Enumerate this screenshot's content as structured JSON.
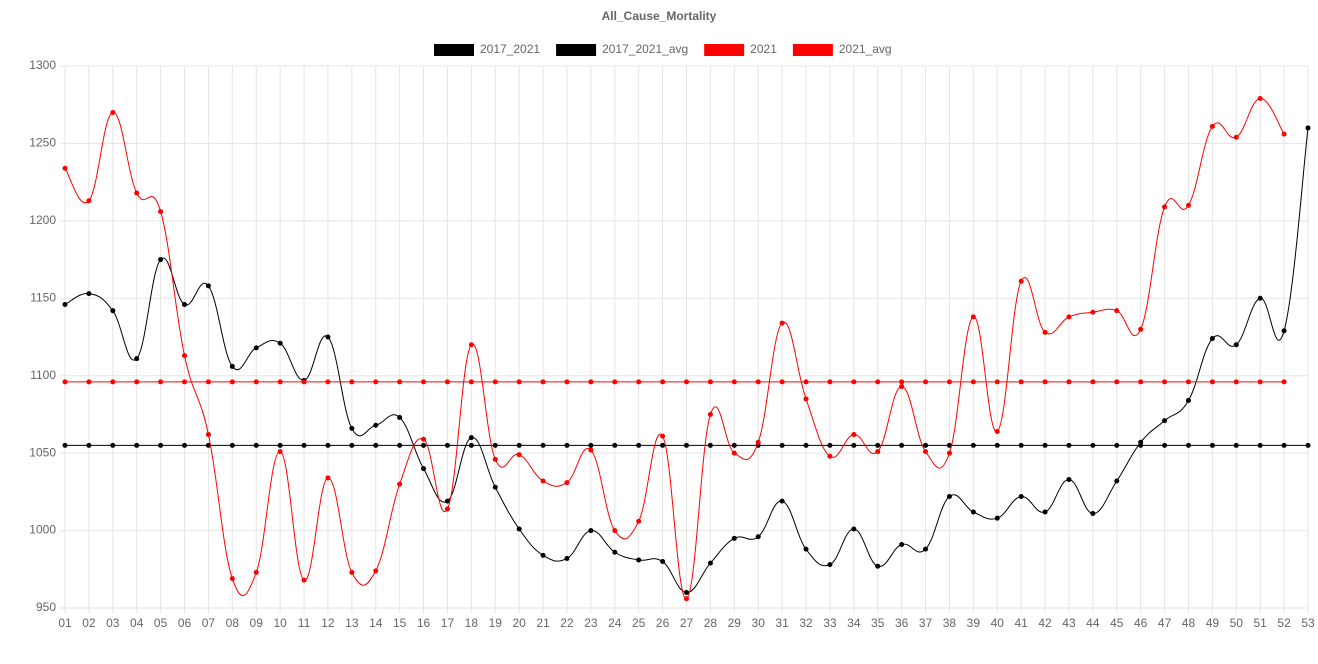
{
  "chart_data": {
    "type": "line",
    "title": "All_Cause_Mortality",
    "categories": [
      "01",
      "02",
      "03",
      "04",
      "05",
      "06",
      "07",
      "08",
      "09",
      "10",
      "11",
      "12",
      "13",
      "14",
      "15",
      "16",
      "17",
      "18",
      "19",
      "20",
      "21",
      "22",
      "23",
      "24",
      "25",
      "26",
      "27",
      "28",
      "29",
      "30",
      "31",
      "32",
      "33",
      "34",
      "35",
      "36",
      "37",
      "38",
      "39",
      "40",
      "41",
      "42",
      "43",
      "44",
      "45",
      "46",
      "47",
      "48",
      "49",
      "50",
      "51",
      "52",
      "53"
    ],
    "series": [
      {
        "name": "2017_2021",
        "color": "#000000",
        "values": [
          1146,
          1153,
          1142,
          1111,
          1175,
          1146,
          1158,
          1106,
          1118,
          1121,
          1097,
          1125,
          1066,
          1068,
          1073,
          1040,
          1019,
          1060,
          1028,
          1001,
          984,
          982,
          1000,
          986,
          981,
          980,
          960,
          979,
          995,
          996,
          1019,
          988,
          978,
          1001,
          977,
          991,
          988,
          1022,
          1012,
          1008,
          1022,
          1012,
          1033,
          1011,
          1032,
          1057,
          1071,
          1084,
          1124,
          1120,
          1150,
          1129,
          1260
        ]
      },
      {
        "name": "2017_2021_avg",
        "color": "#000000",
        "values": [
          1055,
          1055,
          1055,
          1055,
          1055,
          1055,
          1055,
          1055,
          1055,
          1055,
          1055,
          1055,
          1055,
          1055,
          1055,
          1055,
          1055,
          1055,
          1055,
          1055,
          1055,
          1055,
          1055,
          1055,
          1055,
          1055,
          1055,
          1055,
          1055,
          1055,
          1055,
          1055,
          1055,
          1055,
          1055,
          1055,
          1055,
          1055,
          1055,
          1055,
          1055,
          1055,
          1055,
          1055,
          1055,
          1055,
          1055,
          1055,
          1055,
          1055,
          1055,
          1055,
          1055
        ]
      },
      {
        "name": "2021",
        "color": "#ff0000",
        "values": [
          1234,
          1213,
          1270,
          1218,
          1206,
          1113,
          1062,
          969,
          973,
          1051,
          968,
          1034,
          973,
          974,
          1030,
          1059,
          1014,
          1120,
          1046,
          1049,
          1032,
          1031,
          1052,
          1000,
          1006,
          1061,
          956,
          1075,
          1050,
          1057,
          1134,
          1085,
          1048,
          1062,
          1051,
          1093,
          1051,
          1050,
          1138,
          1064,
          1161,
          1128,
          1138,
          1141,
          1142,
          1130,
          1209,
          1210,
          1261,
          1254,
          1279,
          1256,
          null
        ]
      },
      {
        "name": "2021_avg",
        "color": "#ff0000",
        "values": [
          1096,
          1096,
          1096,
          1096,
          1096,
          1096,
          1096,
          1096,
          1096,
          1096,
          1096,
          1096,
          1096,
          1096,
          1096,
          1096,
          1096,
          1096,
          1096,
          1096,
          1096,
          1096,
          1096,
          1096,
          1096,
          1096,
          1096,
          1096,
          1096,
          1096,
          1096,
          1096,
          1096,
          1096,
          1096,
          1096,
          1096,
          1096,
          1096,
          1096,
          1096,
          1096,
          1096,
          1096,
          1096,
          1096,
          1096,
          1096,
          1096,
          1096,
          1096,
          1096,
          null
        ]
      }
    ],
    "ylim": [
      950,
      1300
    ],
    "yticks": [
      950,
      1000,
      1050,
      1100,
      1150,
      1200,
      1250,
      1300
    ],
    "grid": true
  }
}
